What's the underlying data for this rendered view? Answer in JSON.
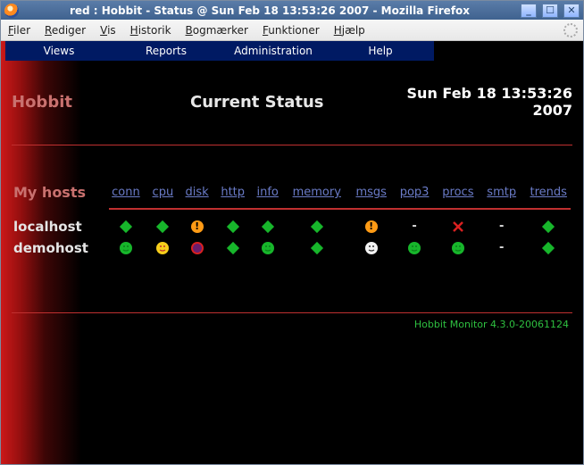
{
  "window": {
    "title": "red : Hobbit - Status @ Sun Feb 18 13:53:26 2007 - Mozilla Firefox"
  },
  "menubar": {
    "items": [
      "Filer",
      "Rediger",
      "Vis",
      "Historik",
      "Bogmærker",
      "Funktioner",
      "Hjælp"
    ]
  },
  "nav": {
    "items": [
      "Views",
      "Reports",
      "Administration",
      "Help"
    ],
    "bg_color": "#001a63",
    "text_color": "#ffffff"
  },
  "header": {
    "app_name": "Hobbit",
    "page_title": "Current Status",
    "timestamp_line1": "Sun Feb 18 13:53:26",
    "timestamp_line2": "2007"
  },
  "colors": {
    "accent_red": "#c03030",
    "link_blue": "#6a7bc7",
    "section_label": "#c9716f",
    "green": "#17b62b",
    "green_dark": "#0b7f1a",
    "yellow": "#f6ce1b",
    "orange": "#ff9b15",
    "red": "#d92020",
    "purple": "#6a1d6d",
    "clear": "#f2f2f2",
    "footer_green": "#2ec040"
  },
  "table": {
    "section_label": "My hosts",
    "columns": [
      "conn",
      "cpu",
      "disk",
      "http",
      "info",
      "memory",
      "msgs",
      "pop3",
      "procs",
      "smtp",
      "trends"
    ],
    "hosts": [
      {
        "name": "localhost",
        "cells": [
          "diamond",
          "diamond",
          "yellow",
          "diamond",
          "diamond",
          "diamond",
          "yellow",
          "dash",
          "redX",
          "dash",
          "diamond"
        ]
      },
      {
        "name": "demohost",
        "cells": [
          "green",
          "yellow-face",
          "purple",
          "diamond",
          "green",
          "diamond",
          "clear-face",
          "green",
          "green",
          "dash",
          "diamond"
        ]
      }
    ]
  },
  "footer": {
    "text": "Hobbit Monitor 4.3.0-20061124"
  },
  "icons": {
    "diamond": {
      "type": "diamond",
      "color": "#17b62b"
    },
    "green": {
      "type": "smiley",
      "bg": "#17b62b",
      "face": "#0b7f1a"
    },
    "yellow": {
      "type": "bang",
      "bg": "#ff9b15",
      "glyph_color": "#000000"
    },
    "yellow-face": {
      "type": "smiley",
      "bg": "#f6ce1b",
      "face": "#c03030"
    },
    "purple": {
      "type": "circle",
      "bg": "#d92020",
      "inner": "#6a1d6d"
    },
    "clear-face": {
      "type": "smiley",
      "bg": "#f2f2f2",
      "face": "#333333"
    },
    "redX": {
      "type": "x",
      "bg": "transparent",
      "stroke": "#d92020"
    },
    "dash": {
      "type": "dash",
      "color": "#dddddd"
    }
  }
}
